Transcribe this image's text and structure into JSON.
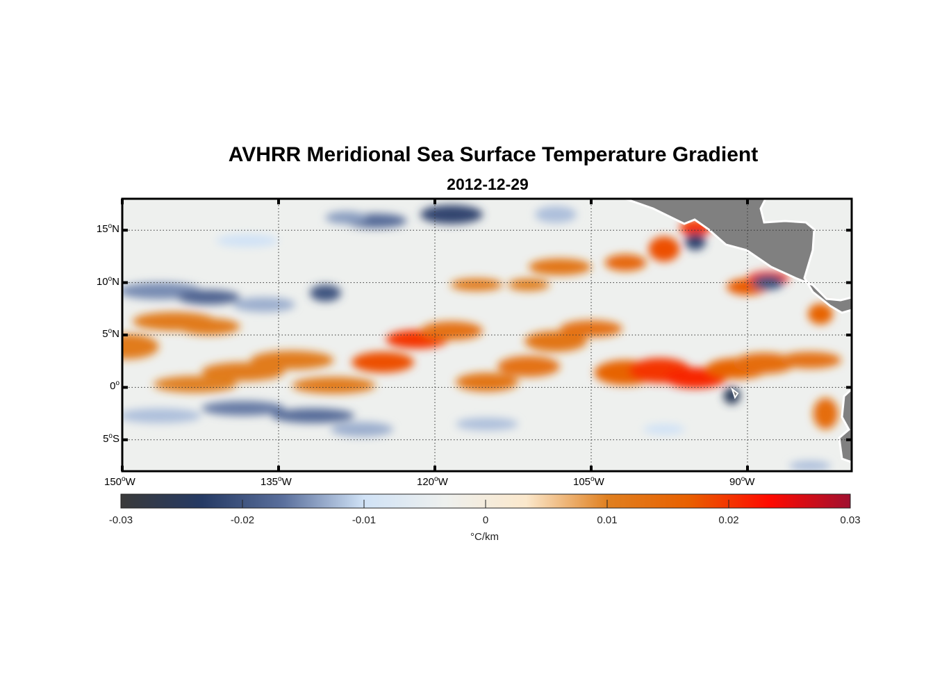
{
  "chart_data": {
    "type": "heatmap",
    "title": "AVHRR Meridional Sea Surface Temperature Gradient",
    "subtitle": "2012-12-29",
    "xlim": [
      -150,
      -80
    ],
    "ylim": [
      -8,
      18
    ],
    "xticks": [
      {
        "v": -150,
        "label": "150",
        "suffix": "W"
      },
      {
        "v": -135,
        "label": "135",
        "suffix": "W"
      },
      {
        "v": -120,
        "label": "120",
        "suffix": "W"
      },
      {
        "v": -105,
        "label": "105",
        "suffix": "W"
      },
      {
        "v": -90,
        "label": "90",
        "suffix": "W"
      }
    ],
    "yticks": [
      {
        "v": 15,
        "label": "15",
        "suffix": "N"
      },
      {
        "v": 10,
        "label": "10",
        "suffix": "N"
      },
      {
        "v": 5,
        "label": "5",
        "suffix": "N"
      },
      {
        "v": 0,
        "label": "0",
        "suffix": ""
      },
      {
        "v": -5,
        "label": "5",
        "suffix": "S"
      }
    ],
    "grid": true,
    "colorbar": {
      "label": "°C/km",
      "range": [
        -0.03,
        0.03
      ],
      "ticks": [
        "-0.03",
        "-0.02",
        "-0.01",
        "0",
        "0.01",
        "0.02",
        "0.03"
      ],
      "colors": [
        "#3a3a3a",
        "#253a64",
        "#5a6f9c",
        "#d0e2f6",
        "#eef0ee",
        "#fbe8cc",
        "#e08020",
        "#e86000",
        "#ff0a00",
        "#a01030"
      ]
    },
    "land_color": "#808080",
    "features_lon_lat_dlon_dlat_value": [
      [
        -149.5,
        3.9,
        3,
        1.2,
        0.011
      ],
      [
        -145,
        6.3,
        4,
        0.9,
        0.011
      ],
      [
        -141.7,
        5.8,
        3,
        0.8,
        0.011
      ],
      [
        -143,
        0.3,
        4,
        0.8,
        0.01
      ],
      [
        -138.4,
        1.5,
        4,
        0.9,
        0.011
      ],
      [
        -133.7,
        2.6,
        4,
        0.9,
        0.011
      ],
      [
        -129.7,
        0.2,
        4,
        0.8,
        0.011
      ],
      [
        -125,
        2.4,
        3,
        1,
        0.018
      ],
      [
        -121.7,
        4.6,
        3,
        0.9,
        0.02
      ],
      [
        -118.4,
        5.4,
        3,
        0.9,
        0.013
      ],
      [
        -115,
        0.5,
        3,
        0.9,
        0.012
      ],
      [
        -111,
        2,
        3,
        1,
        0.013
      ],
      [
        -108.4,
        4.4,
        3,
        1,
        0.012
      ],
      [
        -105,
        5.6,
        3,
        0.8,
        0.013
      ],
      [
        -101.7,
        1.4,
        3,
        1.2,
        0.016
      ],
      [
        -98.4,
        1.6,
        3,
        1.2,
        0.02
      ],
      [
        -95,
        0.9,
        3,
        1,
        0.021
      ],
      [
        -91,
        1.8,
        3,
        1,
        0.016
      ],
      [
        -88.4,
        2.3,
        3,
        1,
        0.014
      ],
      [
        -84,
        2.6,
        3,
        0.8,
        0.013
      ],
      [
        -108,
        11.5,
        3,
        0.8,
        0.012
      ],
      [
        -101.7,
        11.9,
        2,
        0.8,
        0.015
      ],
      [
        -98,
        13.2,
        1.5,
        1.2,
        0.018
      ],
      [
        -95,
        15.2,
        1.5,
        0.8,
        0.02
      ],
      [
        -90,
        9.6,
        2,
        0.8,
        0.017
      ],
      [
        -88,
        10.4,
        2,
        0.7,
        0.02
      ],
      [
        -83,
        7,
        1.2,
        1,
        0.016
      ],
      [
        -82.5,
        -2.5,
        1.2,
        1.5,
        0.014
      ],
      [
        -116,
        9.8,
        2.5,
        0.6,
        0.011
      ],
      [
        -111,
        9.8,
        2,
        0.6,
        0.01
      ],
      [
        -146.4,
        9.2,
        4,
        0.8,
        -0.015
      ],
      [
        -141.7,
        8.6,
        3,
        0.7,
        -0.018
      ],
      [
        -136.4,
        7.9,
        3,
        0.7,
        -0.013
      ],
      [
        -130.5,
        9,
        1.5,
        0.8,
        -0.02
      ],
      [
        -146.4,
        -2.7,
        4,
        0.7,
        -0.012
      ],
      [
        -138.4,
        -2,
        4,
        0.7,
        -0.016
      ],
      [
        -131.7,
        -2.7,
        4,
        0.7,
        -0.017
      ],
      [
        -127,
        -4,
        3,
        0.7,
        -0.013
      ],
      [
        -118.4,
        16.5,
        3,
        0.9,
        -0.022
      ],
      [
        -108.4,
        16.5,
        2,
        0.8,
        -0.012
      ],
      [
        -95,
        13.9,
        1,
        0.8,
        -0.022
      ],
      [
        -88,
        10,
        1.5,
        0.7,
        -0.02
      ],
      [
        -91.5,
        -0.8,
        0.8,
        0.8,
        -0.025
      ],
      [
        -115,
        -3.5,
        3,
        0.6,
        -0.012
      ],
      [
        -125.7,
        15.9,
        3,
        0.7,
        -0.017
      ],
      [
        -138,
        14,
        3,
        0.6,
        -0.01
      ],
      [
        -128.5,
        16.2,
        2,
        0.6,
        -0.014
      ],
      [
        -98,
        -4,
        2,
        0.5,
        -0.01
      ],
      [
        -84,
        -7.5,
        2,
        0.5,
        -0.012
      ]
    ]
  }
}
